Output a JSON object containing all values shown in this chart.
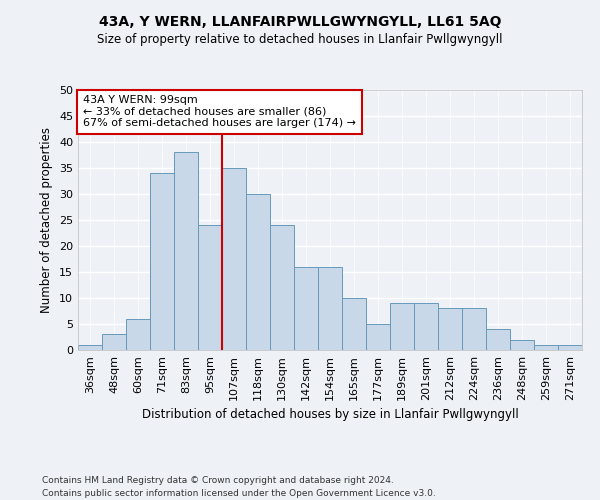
{
  "title": "43A, Y WERN, LLANFAIRPWLLGWYNGYLL, LL61 5AQ",
  "subtitle": "Size of property relative to detached houses in Llanfair Pwllgwyngyll",
  "xlabel": "Distribution of detached houses by size in Llanfair Pwllgwyngyll",
  "ylabel": "Number of detached properties",
  "bin_labels": [
    "36sqm",
    "48sqm",
    "60sqm",
    "71sqm",
    "83sqm",
    "95sqm",
    "107sqm",
    "118sqm",
    "130sqm",
    "142sqm",
    "154sqm",
    "165sqm",
    "177sqm",
    "189sqm",
    "201sqm",
    "212sqm",
    "224sqm",
    "236sqm",
    "248sqm",
    "259sqm",
    "271sqm"
  ],
  "bar_values": [
    1,
    3,
    6,
    34,
    38,
    24,
    35,
    30,
    24,
    16,
    16,
    10,
    5,
    9,
    9,
    8,
    8,
    4,
    2,
    1,
    1
  ],
  "bar_color": "#c8d8e8",
  "bar_edge_color": "#6699bb",
  "red_line_x": 5.5,
  "annotation_title": "43A Y WERN: 99sqm",
  "annotation_line1": "← 33% of detached houses are smaller (86)",
  "annotation_line2": "67% of semi-detached houses are larger (174) →",
  "annotation_box_color": "#ffffff",
  "annotation_box_edge": "#cc0000",
  "ylim": [
    0,
    50
  ],
  "yticks": [
    0,
    5,
    10,
    15,
    20,
    25,
    30,
    35,
    40,
    45,
    50
  ],
  "bg_color": "#eef2f7",
  "grid_color": "#ffffff",
  "footnote1": "Contains HM Land Registry data © Crown copyright and database right 2024.",
  "footnote2": "Contains public sector information licensed under the Open Government Licence v3.0."
}
